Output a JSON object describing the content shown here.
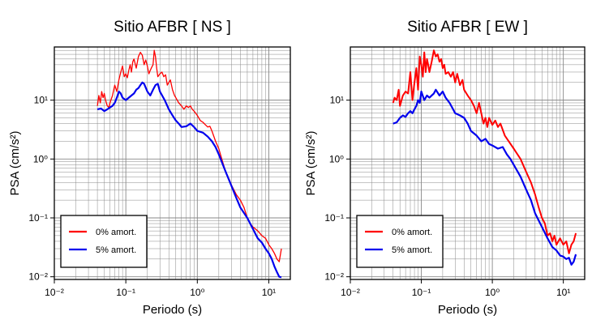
{
  "figure": {
    "colors": {
      "undamped": "#ff0000",
      "damped": "#0000ee",
      "grid": "#888888",
      "frame": "#000000"
    }
  },
  "chart_data": [
    {
      "type": "line",
      "title": "Sitio AFBR [ NS ]",
      "xlabel": "Periodo (s)",
      "ylabel": "PSA (cm/s²)",
      "xscale": "log",
      "yscale": "log",
      "xlim": [
        0.01,
        20
      ],
      "ylim": [
        0.009,
        80
      ],
      "grid": true,
      "legend_position": "bottom-left",
      "xticks": [
        {
          "value": 0.01,
          "label": "10⁻²"
        },
        {
          "value": 0.1,
          "label": "10⁻¹"
        },
        {
          "value": 1,
          "label": "10⁰"
        },
        {
          "value": 10,
          "label": "10¹"
        }
      ],
      "yticks": [
        {
          "value": 0.01,
          "label": "10⁻²"
        },
        {
          "value": 0.1,
          "label": "10⁻¹"
        },
        {
          "value": 1,
          "label": "10⁰"
        },
        {
          "value": 10,
          "label": "10¹"
        }
      ],
      "series": [
        {
          "name": "0% amort.",
          "color": "#ff0000",
          "x": [
            0.04,
            0.042,
            0.044,
            0.046,
            0.048,
            0.05,
            0.052,
            0.055,
            0.058,
            0.06,
            0.065,
            0.07,
            0.075,
            0.08,
            0.085,
            0.09,
            0.095,
            0.1,
            0.105,
            0.11,
            0.115,
            0.12,
            0.125,
            0.13,
            0.14,
            0.15,
            0.16,
            0.17,
            0.18,
            0.19,
            0.2,
            0.21,
            0.22,
            0.23,
            0.24,
            0.25,
            0.26,
            0.27,
            0.28,
            0.3,
            0.32,
            0.34,
            0.36,
            0.38,
            0.4,
            0.42,
            0.45,
            0.48,
            0.5,
            0.55,
            0.6,
            0.65,
            0.7,
            0.75,
            0.8,
            0.85,
            0.9,
            0.95,
            1.0,
            1.1,
            1.2,
            1.3,
            1.4,
            1.5,
            1.6,
            1.8,
            2.0,
            2.2,
            2.5,
            2.8,
            3.0,
            3.5,
            4.0,
            4.5,
            5.0,
            5.5,
            6.0,
            6.5,
            7.0,
            7.5,
            8.0,
            9.0,
            10.0,
            11.0,
            12.0,
            13.0,
            14.0,
            15.0
          ],
          "y": [
            8,
            12,
            9,
            14,
            11,
            13,
            10,
            8,
            7.5,
            9,
            12,
            18,
            14,
            22,
            30,
            38,
            25,
            28,
            24,
            32,
            40,
            30,
            45,
            50,
            35,
            55,
            65,
            58,
            40,
            48,
            38,
            28,
            32,
            36,
            40,
            70,
            55,
            35,
            25,
            28,
            30,
            25,
            27,
            18,
            20,
            22,
            15,
            12,
            11,
            9,
            8,
            7,
            8,
            7.5,
            8,
            7,
            6.5,
            6,
            5.5,
            4.5,
            4.2,
            3.8,
            3.5,
            3.6,
            3.0,
            2.0,
            1.5,
            1.0,
            0.6,
            0.45,
            0.36,
            0.25,
            0.2,
            0.15,
            0.1,
            0.08,
            0.07,
            0.065,
            0.06,
            0.055,
            0.05,
            0.045,
            0.035,
            0.03,
            0.025,
            0.02,
            0.018,
            0.03
          ]
        },
        {
          "name": "5% amort.",
          "color": "#0000ee",
          "x": [
            0.04,
            0.045,
            0.05,
            0.055,
            0.06,
            0.065,
            0.07,
            0.075,
            0.08,
            0.085,
            0.09,
            0.1,
            0.11,
            0.12,
            0.13,
            0.14,
            0.15,
            0.16,
            0.17,
            0.18,
            0.2,
            0.22,
            0.24,
            0.26,
            0.28,
            0.3,
            0.35,
            0.4,
            0.45,
            0.5,
            0.55,
            0.6,
            0.7,
            0.8,
            0.9,
            1.0,
            1.2,
            1.4,
            1.6,
            1.8,
            2.0,
            2.5,
            3.0,
            3.5,
            4.0,
            5.0,
            6.0,
            7.0,
            8.0,
            9.0,
            10.0,
            11.0,
            12.0,
            13.0,
            14.0,
            15.0
          ],
          "y": [
            7,
            7.2,
            6.5,
            7,
            7.5,
            8,
            9,
            11,
            14,
            13,
            11,
            10,
            11,
            12,
            13,
            15,
            16,
            18,
            20,
            19,
            14,
            12,
            15,
            18,
            19,
            14,
            10,
            7,
            5.5,
            4.5,
            4,
            3.5,
            3.6,
            4,
            3.5,
            3.0,
            2.8,
            2.4,
            2.0,
            1.6,
            1.2,
            0.6,
            0.35,
            0.22,
            0.15,
            0.1,
            0.065,
            0.045,
            0.038,
            0.03,
            0.025,
            0.02,
            0.015,
            0.012,
            0.01,
            0.0098
          ]
        }
      ]
    },
    {
      "type": "line",
      "title": "Sitio AFBR [ EW ]",
      "xlabel": "Periodo (s)",
      "ylabel": "PSA (cm/s²)",
      "xscale": "log",
      "yscale": "log",
      "xlim": [
        0.01,
        20
      ],
      "ylim": [
        0.009,
        80
      ],
      "grid": true,
      "legend_position": "bottom-left",
      "xticks": [
        {
          "value": 0.01,
          "label": "10⁻²"
        },
        {
          "value": 0.1,
          "label": "10⁻¹"
        },
        {
          "value": 1,
          "label": "10⁰"
        },
        {
          "value": 10,
          "label": "10¹"
        }
      ],
      "yticks": [
        {
          "value": 0.01,
          "label": "10⁻²"
        },
        {
          "value": 0.1,
          "label": "10⁻¹"
        },
        {
          "value": 1,
          "label": "10⁰"
        },
        {
          "value": 10,
          "label": "10¹"
        }
      ],
      "series": [
        {
          "name": "0% amort.",
          "color": "#ff0000",
          "x": [
            0.04,
            0.042,
            0.045,
            0.048,
            0.05,
            0.055,
            0.06,
            0.065,
            0.07,
            0.075,
            0.08,
            0.085,
            0.09,
            0.095,
            0.1,
            0.105,
            0.11,
            0.115,
            0.12,
            0.125,
            0.13,
            0.14,
            0.15,
            0.16,
            0.17,
            0.18,
            0.19,
            0.2,
            0.21,
            0.22,
            0.24,
            0.26,
            0.28,
            0.3,
            0.32,
            0.35,
            0.38,
            0.4,
            0.45,
            0.5,
            0.55,
            0.6,
            0.65,
            0.7,
            0.75,
            0.8,
            0.85,
            0.9,
            1.0,
            1.1,
            1.2,
            1.3,
            1.5,
            1.7,
            2.0,
            2.5,
            3.0,
            3.5,
            4.0,
            4.5,
            5.0,
            5.5,
            6.0,
            6.5,
            7.0,
            7.5,
            8.0,
            9.0,
            10.0,
            11.0,
            12.0,
            13.0,
            14.0,
            15.0
          ],
          "y": [
            9,
            11,
            10,
            15,
            8,
            12,
            14,
            13,
            30,
            10,
            20,
            35,
            15,
            55,
            40,
            25,
            65,
            30,
            50,
            40,
            30,
            45,
            70,
            55,
            60,
            45,
            50,
            35,
            40,
            28,
            30,
            25,
            30,
            20,
            28,
            18,
            22,
            15,
            12,
            10,
            8,
            6,
            9,
            6,
            4,
            5,
            3.5,
            5,
            3.8,
            4.5,
            3.5,
            4,
            2.5,
            2.0,
            1.5,
            1.0,
            0.6,
            0.4,
            0.25,
            0.15,
            0.1,
            0.08,
            0.05,
            0.055,
            0.04,
            0.05,
            0.035,
            0.045,
            0.035,
            0.04,
            0.025,
            0.035,
            0.04,
            0.055
          ]
        },
        {
          "name": "5% amort.",
          "color": "#0000ee",
          "x": [
            0.04,
            0.045,
            0.05,
            0.055,
            0.06,
            0.065,
            0.07,
            0.075,
            0.08,
            0.085,
            0.09,
            0.095,
            0.1,
            0.11,
            0.12,
            0.13,
            0.14,
            0.15,
            0.16,
            0.18,
            0.2,
            0.22,
            0.25,
            0.28,
            0.3,
            0.35,
            0.4,
            0.45,
            0.5,
            0.6,
            0.7,
            0.8,
            0.9,
            1.0,
            1.2,
            1.4,
            1.6,
            1.8,
            2.0,
            2.5,
            3.0,
            3.5,
            4.0,
            5.0,
            6.0,
            7.0,
            8.0,
            9.0,
            10.0,
            11.0,
            12.0,
            13.0,
            14.0,
            15.0
          ],
          "y": [
            4,
            4.2,
            5,
            5.5,
            5.2,
            6,
            6.5,
            6,
            7,
            8,
            10,
            9,
            14,
            10,
            12,
            11,
            12,
            13,
            15,
            12,
            14,
            11,
            9,
            7,
            6,
            5.5,
            5,
            4,
            3.0,
            2.5,
            2.0,
            2.2,
            1.8,
            1.7,
            1.5,
            1.6,
            1.2,
            1.0,
            0.8,
            0.5,
            0.3,
            0.2,
            0.12,
            0.07,
            0.045,
            0.032,
            0.028,
            0.023,
            0.022,
            0.02,
            0.021,
            0.016,
            0.018,
            0.024
          ]
        }
      ]
    }
  ]
}
